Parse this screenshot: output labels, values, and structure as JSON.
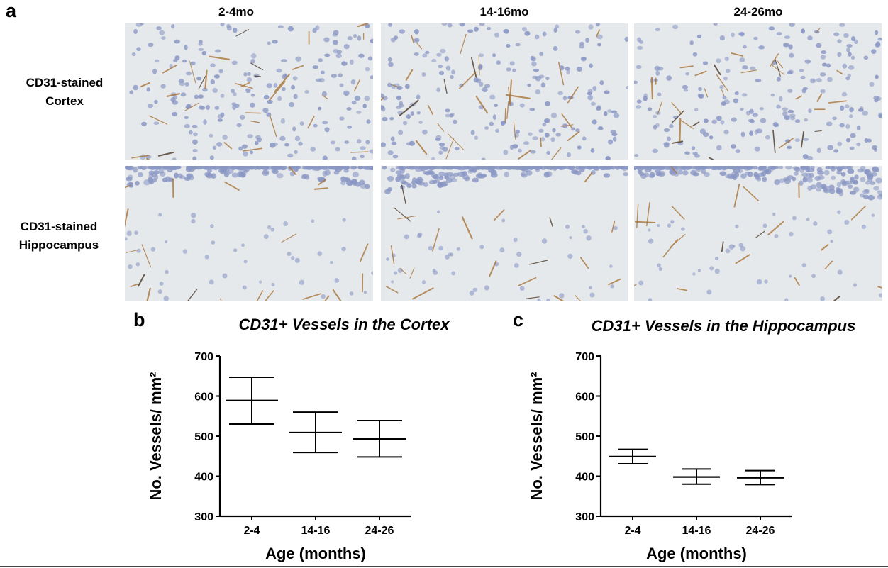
{
  "figure": {
    "panel_a": {
      "letter": "a",
      "columns": [
        "2-4mo",
        "14-16mo",
        "24-26mo"
      ],
      "rows": [
        {
          "line1": "CD31-stained",
          "line2": "Cortex"
        },
        {
          "line1": "CD31-stained",
          "line2": "Hippocampus"
        }
      ]
    },
    "colors": {
      "tissue": "#e6e9eb",
      "nucleus": "#8a97c4",
      "vessel": "#a8753a",
      "vessel_dark": "#4a3828"
    }
  },
  "chart_data": [
    {
      "type": "scatter",
      "panel": "b",
      "title": "CD31+ Vessels in the Cortex",
      "xlabel": "Age (months)",
      "ylabel": "No. Vessels/ mm²",
      "categories": [
        "2-4",
        "14-16",
        "24-26"
      ],
      "mean": [
        589,
        509,
        493
      ],
      "lower": [
        530,
        459,
        448
      ],
      "upper": [
        647,
        560,
        539
      ],
      "ylim": [
        300,
        700
      ],
      "yticks": [
        300,
        400,
        500,
        600,
        700
      ],
      "grid": false
    },
    {
      "type": "scatter",
      "panel": "c",
      "title": "CD31+ Vessels in the Hippocampus",
      "xlabel": "Age (months)",
      "ylabel": "No. Vessels/ mm²",
      "categories": [
        "2-4",
        "14-16",
        "24-26"
      ],
      "mean": [
        449,
        398,
        396
      ],
      "lower": [
        431,
        380,
        379
      ],
      "upper": [
        467,
        418,
        414
      ],
      "ylim": [
        300,
        700
      ],
      "yticks": [
        300,
        400,
        500,
        600,
        700
      ],
      "grid": false
    }
  ]
}
